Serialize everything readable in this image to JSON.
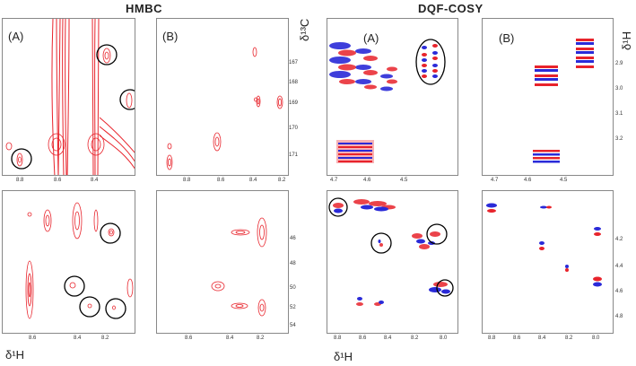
{
  "titles": {
    "hmbc": "HMBC",
    "cosy": "DQF-COSY"
  },
  "panel_labels": {
    "a": "(A)",
    "b": "(B)"
  },
  "axis_labels": {
    "c13": "δ¹³C",
    "h1_right": "δ¹H",
    "h1_bottom_left": "δ¹H",
    "h1_bottom_cosy": "δ¹H"
  },
  "ticks": {
    "hmbc_top_x": [
      "8.8",
      "8.6",
      "8.4"
    ],
    "hmbc_top_b_x": [
      "8.8",
      "8.6",
      "8.4",
      "8.2"
    ],
    "hmbc_top_y": [
      "167",
      "168",
      "169",
      "170",
      "171"
    ],
    "hmbc_bot_x": [
      "8.6",
      "8.4",
      "8.2"
    ],
    "hmbc_bot_b_x": [
      "8.6",
      "8.4",
      "8.2"
    ],
    "hmbc_bot_y": [
      "46",
      "48",
      "50",
      "52",
      "54"
    ],
    "cosy_top_x": [
      "4.7",
      "4.6",
      "4.5"
    ],
    "cosy_top_b_x": [
      "4.7",
      "4.6",
      "4.5"
    ],
    "cosy_top_y": [
      "2.9",
      "3.0",
      "3.1",
      "3.2"
    ],
    "cosy_bot_x": [
      "8.8",
      "8.6",
      "8.4",
      "8.2",
      "8.0"
    ],
    "cosy_bot_b_x": [
      "8.8",
      "8.6",
      "8.4",
      "8.2",
      "8.0"
    ],
    "cosy_bot_y": [
      "4.2",
      "4.4",
      "4.6",
      "4.8"
    ]
  },
  "colors": {
    "positive": "#e8232b",
    "negative": "#2a2ad8",
    "frame": "#888888",
    "circle": "#000000"
  }
}
